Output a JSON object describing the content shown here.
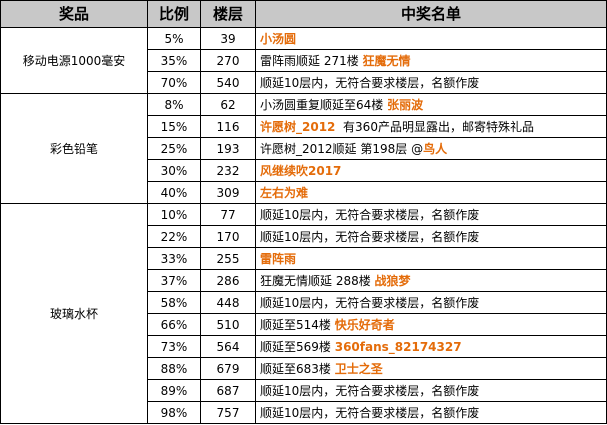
{
  "headers": {
    "prize": "奖品",
    "ratio": "比例",
    "floor": "楼层",
    "winners": "中奖名单"
  },
  "colors": {
    "header_bg": "#c8c8c8",
    "winner_name": "#e46c0a"
  },
  "groups": [
    {
      "prize": "移动电源1000毫安",
      "rows": [
        {
          "pct": "5%",
          "floor": "39",
          "note": "",
          "name": "小汤圆"
        },
        {
          "pct": "35%",
          "floor": "270",
          "note": "雷阵雨顺延 271楼 ",
          "name": "狂魔无情"
        },
        {
          "pct": "70%",
          "floor": "540",
          "note": "顺延10层内，无符合要求楼层，名额作废",
          "name": ""
        }
      ]
    },
    {
      "prize": "彩色铅笔",
      "rows": [
        {
          "pct": "8%",
          "floor": "62",
          "note": "小汤圆重复顺延至64楼 ",
          "name": "张丽波"
        },
        {
          "pct": "15%",
          "floor": "116",
          "note": "有360产品明显露出，邮寄特殊礼品",
          "name": "许愿树_2012",
          "name_first": true
        },
        {
          "pct": "25%",
          "floor": "193",
          "note": "许愿树_2012顺延 第198层 @",
          "name": "鸟人"
        },
        {
          "pct": "30%",
          "floor": "232",
          "note": "",
          "name": "风继续吹2017"
        },
        {
          "pct": "40%",
          "floor": "309",
          "note": "",
          "name": "左右为难"
        }
      ]
    },
    {
      "prize": "玻璃水杯",
      "rows": [
        {
          "pct": "10%",
          "floor": "77",
          "note": "顺延10层内，无符合要求楼层，名额作废",
          "name": ""
        },
        {
          "pct": "22%",
          "floor": "170",
          "note": "顺延10层内，无符合要求楼层，名额作废",
          "name": ""
        },
        {
          "pct": "33%",
          "floor": "255",
          "note": "",
          "name": "雷阵雨"
        },
        {
          "pct": "37%",
          "floor": "286",
          "note": "狂魔无情顺延  288楼 ",
          "name": "战狼梦"
        },
        {
          "pct": "58%",
          "floor": "448",
          "note": "顺延10层内，无符合要求楼层，名额作废",
          "name": ""
        },
        {
          "pct": "66%",
          "floor": "510",
          "note": "顺延至514楼 ",
          "name": "快乐好奇者"
        },
        {
          "pct": "73%",
          "floor": "564",
          "note": "顺延至569楼 ",
          "name": "360fans_82174327"
        },
        {
          "pct": "88%",
          "floor": "679",
          "note": "顺延至683楼 ",
          "name": "卫士之圣"
        },
        {
          "pct": "89%",
          "floor": "687",
          "note": "顺延10层内，无符合要求楼层，名额作废",
          "name": ""
        },
        {
          "pct": "98%",
          "floor": "757",
          "note": "顺延10层内，无符合要求楼层，名额作废",
          "name": ""
        }
      ]
    }
  ]
}
